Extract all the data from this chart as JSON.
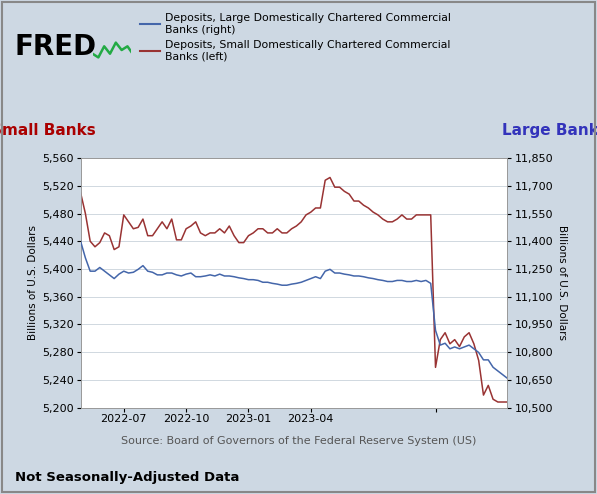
{
  "background_color": "#cdd8e3",
  "plot_bg_color": "#ffffff",
  "source_text": "Source: Board of Governors of the Federal Reserve System (US)",
  "footer_text": "Not Seasonally-Adjusted Data",
  "left_axis_label": "Billions of U.S. Dollars",
  "right_axis_label": "Billions of U.S. Dollars",
  "left_title": "Small Banks",
  "right_title": "Large Banks",
  "left_title_color": "#aa0000",
  "right_title_color": "#3333bb",
  "ylim_left": [
    5200,
    5560
  ],
  "ylim_right": [
    10500,
    11850
  ],
  "yticks_left": [
    5200,
    5240,
    5280,
    5320,
    5360,
    5400,
    5440,
    5480,
    5520,
    5560
  ],
  "yticks_right": [
    10500,
    10650,
    10800,
    10950,
    11100,
    11250,
    11400,
    11550,
    11700,
    11850
  ],
  "legend_entries": [
    "Deposits, Large Domestically Chartered Commercial\nBanks (right)",
    "Deposits, Small Domestically Chartered Commercial\nBanks (left)"
  ],
  "legend_colors": [
    "#4466aa",
    "#993333"
  ],
  "small_banks_y": [
    5510,
    5480,
    5440,
    5432,
    5438,
    5452,
    5448,
    5428,
    5432,
    5478,
    5468,
    5458,
    5460,
    5472,
    5448,
    5448,
    5458,
    5468,
    5458,
    5472,
    5442,
    5442,
    5458,
    5462,
    5468,
    5452,
    5448,
    5452,
    5452,
    5458,
    5452,
    5462,
    5448,
    5438,
    5438,
    5448,
    5452,
    5458,
    5458,
    5452,
    5452,
    5458,
    5452,
    5452,
    5458,
    5462,
    5468,
    5478,
    5482,
    5488,
    5488,
    5528,
    5532,
    5518,
    5518,
    5512,
    5508,
    5498,
    5498,
    5492,
    5488,
    5482,
    5478,
    5472,
    5468,
    5468,
    5472,
    5478,
    5472,
    5472,
    5478,
    5478,
    5478,
    5478,
    5258,
    5298,
    5308,
    5292,
    5298,
    5288,
    5302,
    5308,
    5292,
    5268,
    5218,
    5232,
    5212,
    5208,
    5208,
    5208
  ],
  "large_banks_y": [
    11400,
    11310,
    11238,
    11238,
    11258,
    11238,
    11218,
    11198,
    11222,
    11238,
    11228,
    11232,
    11248,
    11268,
    11238,
    11232,
    11218,
    11218,
    11228,
    11228,
    11218,
    11212,
    11222,
    11228,
    11208,
    11208,
    11212,
    11218,
    11212,
    11222,
    11212,
    11212,
    11208,
    11202,
    11198,
    11192,
    11192,
    11188,
    11178,
    11178,
    11172,
    11168,
    11162,
    11162,
    11168,
    11172,
    11178,
    11188,
    11198,
    11208,
    11198,
    11238,
    11248,
    11228,
    11228,
    11222,
    11218,
    11212,
    11212,
    11208,
    11202,
    11198,
    11192,
    11188,
    11182,
    11182,
    11188,
    11188,
    11182,
    11182,
    11188,
    11182,
    11188,
    11172,
    10918,
    10838,
    10848,
    10818,
    10828,
    10818,
    10828,
    10838,
    10818,
    10798,
    10758,
    10758,
    10718,
    10698,
    10678,
    10658
  ],
  "xtick_positions": [
    9,
    22,
    35,
    48,
    74
  ],
  "xtick_labels": [
    "2022-07",
    "2022-10",
    "2023-01",
    "2023-04",
    ""
  ],
  "xlim": [
    0,
    89
  ],
  "fred_fontsize": 20,
  "axis_fontsize": 7.5,
  "tick_fontsize": 8,
  "source_fontsize": 8,
  "footer_fontsize": 9.5,
  "side_title_fontsize": 11
}
